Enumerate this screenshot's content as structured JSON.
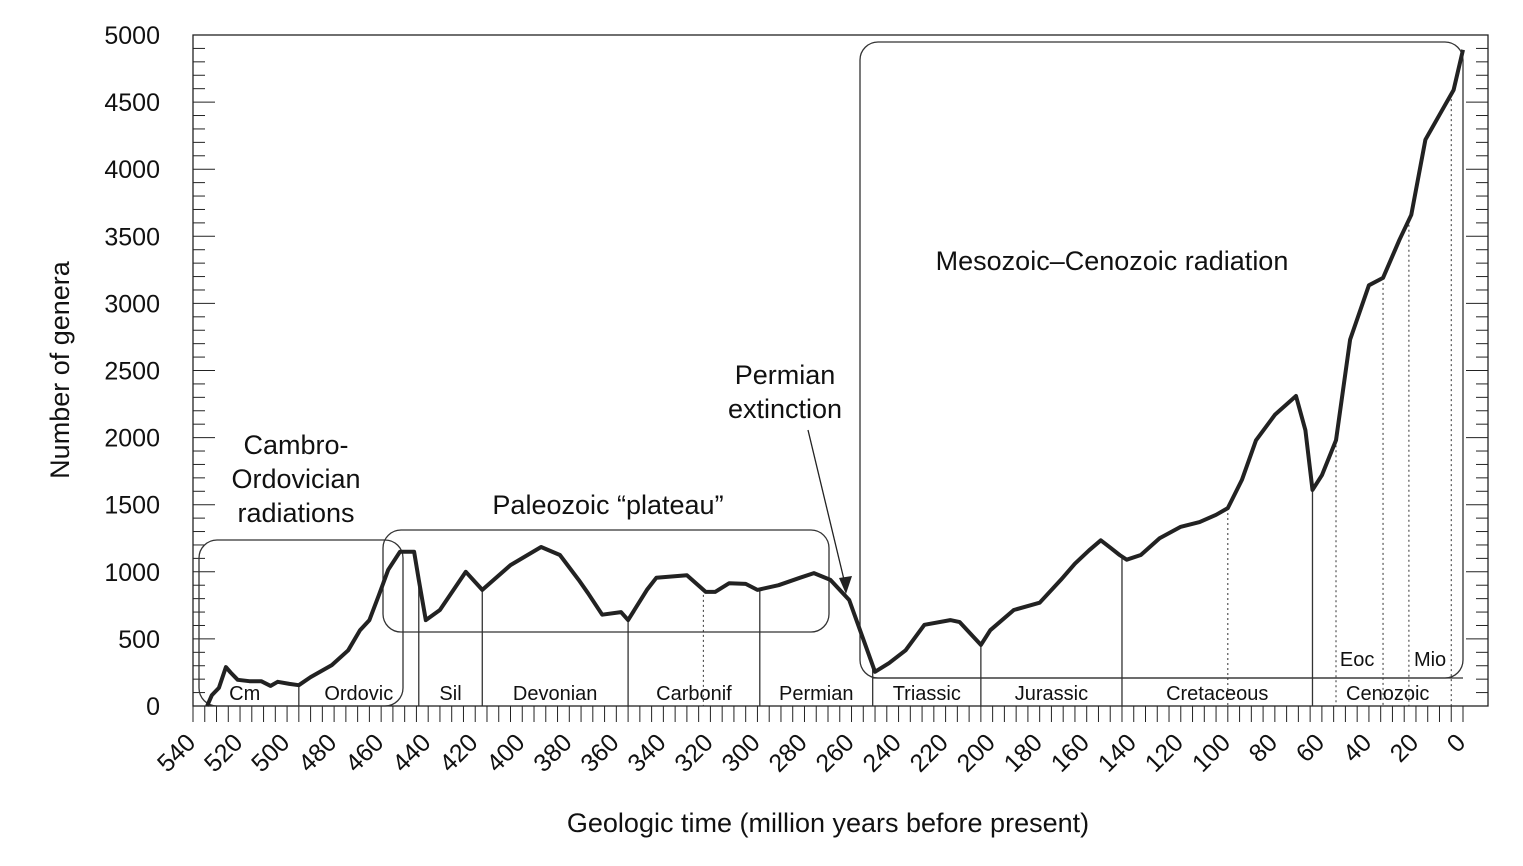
{
  "chart_data": {
    "type": "line",
    "title": "",
    "xlabel": "Geologic time (million years before present)",
    "ylabel": "Number of genera",
    "xlim": [
      540,
      0
    ],
    "ylim": [
      0,
      5000
    ],
    "x_ticks": [
      540,
      520,
      500,
      480,
      460,
      440,
      420,
      400,
      380,
      360,
      340,
      320,
      300,
      280,
      260,
      240,
      220,
      200,
      180,
      160,
      140,
      120,
      100,
      80,
      60,
      40,
      20,
      0
    ],
    "y_ticks": [
      0,
      500,
      1000,
      1500,
      2000,
      2500,
      3000,
      3500,
      4000,
      4500,
      5000
    ],
    "grid": false,
    "series": [
      {
        "name": "genera",
        "x": [
          534,
          532,
          529,
          526,
          524,
          521,
          516,
          511,
          507,
          504,
          499,
          495,
          490,
          481,
          474,
          469,
          465,
          461,
          457,
          452,
          446,
          444,
          441,
          435,
          424,
          417,
          405,
          392,
          384,
          376,
          372,
          366,
          358,
          355,
          347,
          343,
          330,
          322,
          318,
          312,
          305,
          300,
          291,
          282,
          276,
          269,
          261,
          250,
          244,
          237,
          229,
          218,
          214,
          205,
          201,
          191,
          180,
          171,
          165,
          159,
          154,
          150,
          146,
          143,
          137,
          129,
          120,
          112,
          105,
          100,
          94,
          88,
          80,
          71,
          67,
          64,
          60,
          54,
          48,
          40,
          34,
          27,
          22,
          16,
          10,
          4,
          0
        ],
        "y": [
          0,
          80,
          135,
          290,
          250,
          195,
          185,
          185,
          150,
          180,
          165,
          155,
          215,
          305,
          415,
          565,
          640,
          825,
          1015,
          1150,
          1150,
          940,
          640,
          715,
          1000,
          865,
          1050,
          1185,
          1125,
          940,
          840,
          680,
          700,
          640,
          865,
          955,
          975,
          850,
          850,
          915,
          910,
          865,
          900,
          955,
          990,
          940,
          790,
          255,
          320,
          415,
          605,
          640,
          625,
          455,
          565,
          715,
          770,
          940,
          1060,
          1160,
          1235,
          1180,
          1125,
          1090,
          1125,
          1250,
          1335,
          1370,
          1425,
          1475,
          1685,
          1980,
          2170,
          2310,
          2055,
          1610,
          1720,
          1980,
          2730,
          3135,
          3190,
          3475,
          3660,
          4220,
          4405,
          4590,
          4890
        ]
      }
    ],
    "periods": [
      {
        "label": "Cm",
        "start": 541,
        "end": 495
      },
      {
        "label": "Ordovic",
        "start": 495,
        "end": 444
      },
      {
        "label": "Sil",
        "start": 444,
        "end": 417
      },
      {
        "label": "Devonian",
        "start": 417,
        "end": 355
      },
      {
        "label": "Carbonif",
        "start": 355,
        "end": 299
      },
      {
        "label": "Permian",
        "start": 299,
        "end": 251
      },
      {
        "label": "Triassic",
        "start": 251,
        "end": 205
      },
      {
        "label": "Jurassic",
        "start": 205,
        "end": 145
      },
      {
        "label": "Cretaceous",
        "start": 145,
        "end": 64
      },
      {
        "label": "Cenozoic",
        "start": 64,
        "end": 0
      }
    ],
    "epoch_labels": [
      {
        "label": "Eoc",
        "at": 45
      },
      {
        "label": "Mio",
        "at": 14
      }
    ],
    "dotted_boundaries": [
      323,
      100,
      54,
      34,
      23,
      5
    ],
    "annotations": {
      "cambro": [
        "Cambro-",
        "Ordovician",
        "radiations"
      ],
      "plateau": "Paleozoic “plateau”",
      "permian": [
        "Permian",
        "extinction"
      ],
      "meso": "Mesozoic–Cenozoic radiation"
    }
  }
}
